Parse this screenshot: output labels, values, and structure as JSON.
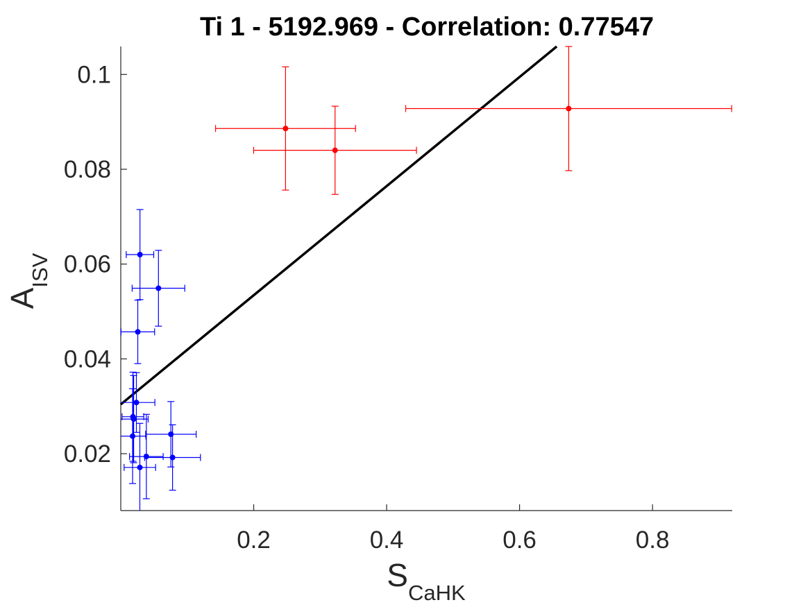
{
  "chart_data": {
    "type": "scatter",
    "title": "Ti 1 - 5192.969 - Correlation: 0.77547",
    "xlabel": {
      "base": "S",
      "sub": "CaHK"
    },
    "ylabel": {
      "base": "A",
      "sub": "ISV"
    },
    "xlim": [
      0.0,
      0.92
    ],
    "ylim": [
      0.008,
      0.1059
    ],
    "xticks": [
      0.2,
      0.4,
      0.6,
      0.8
    ],
    "xtick_labels": [
      "0.2",
      "0.4",
      "0.6",
      "0.8"
    ],
    "yticks": [
      0.02,
      0.04,
      0.06,
      0.08,
      0.1
    ],
    "ytick_labels": [
      "0.02",
      "0.04",
      "0.06",
      "0.08",
      "0.1"
    ],
    "grid": false,
    "legend": "none",
    "series": [
      {
        "color": "#ff0000",
        "points": [
          {
            "x": 0.2479,
            "y": 0.0886,
            "xerr": 0.1053,
            "yerr": 0.013
          },
          {
            "x": 0.3224,
            "y": 0.084,
            "xerr": 0.1225,
            "yerr": 0.0093
          },
          {
            "x": 0.6739,
            "y": 0.0928,
            "xerr": 0.2452,
            "yerr": 0.0131
          }
        ]
      },
      {
        "color": "#0000ff",
        "points": [
          {
            "x": 0.0289,
            "y": 0.062,
            "xerr": 0.0207,
            "yerr": 0.0095
          },
          {
            "x": 0.0567,
            "y": 0.0549,
            "xerr": 0.0396,
            "yerr": 0.008
          },
          {
            "x": 0.0256,
            "y": 0.0457,
            "xerr": 0.0253,
            "yerr": 0.0067
          },
          {
            "x": 0.0235,
            "y": 0.0308,
            "xerr": 0.0278,
            "yerr": 0.0063
          },
          {
            "x": 0.0183,
            "y": 0.0278,
            "xerr": 0.0164,
            "yerr": 0.0094
          },
          {
            "x": 0.0194,
            "y": 0.0273,
            "xerr": 0.0218,
            "yerr": 0.0092
          },
          {
            "x": 0.0178,
            "y": 0.0237,
            "xerr": 0.02,
            "yerr": 0.01
          },
          {
            "x": 0.0754,
            "y": 0.0241,
            "xerr": 0.038,
            "yerr": 0.0069
          },
          {
            "x": 0.0779,
            "y": 0.0192,
            "xerr": 0.042,
            "yerr": 0.0069
          },
          {
            "x": 0.0385,
            "y": 0.0194,
            "xerr": 0.0253,
            "yerr": 0.0089
          },
          {
            "x": 0.0287,
            "y": 0.0171,
            "xerr": 0.0237,
            "yerr": 0.0093
          }
        ]
      }
    ],
    "fit_line": {
      "color": "#000000",
      "x": [
        0.0,
        0.6559
      ],
      "y": [
        0.0304,
        0.1059
      ]
    }
  }
}
